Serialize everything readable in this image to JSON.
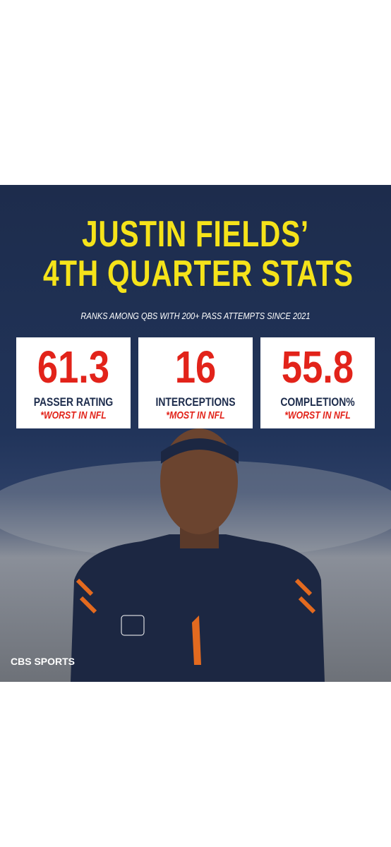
{
  "header": {
    "title_line1": "JUSTIN FIELDS’",
    "title_line2": "4TH QUARTER STATS",
    "subtitle": "RANKS AMONG QBS WITH 200+ PASS ATTEMPTS SINCE 2021"
  },
  "stats": [
    {
      "value": "61.3",
      "label": "PASSER RATING",
      "note": "*WORST IN NFL"
    },
    {
      "value": "16",
      "label": "INTERCEPTIONS",
      "note": "*MOST IN NFL"
    },
    {
      "value": "55.8",
      "label": "COMPLETION%",
      "note": "*WORST IN NFL"
    }
  ],
  "logo": "CBS SPORTS"
}
